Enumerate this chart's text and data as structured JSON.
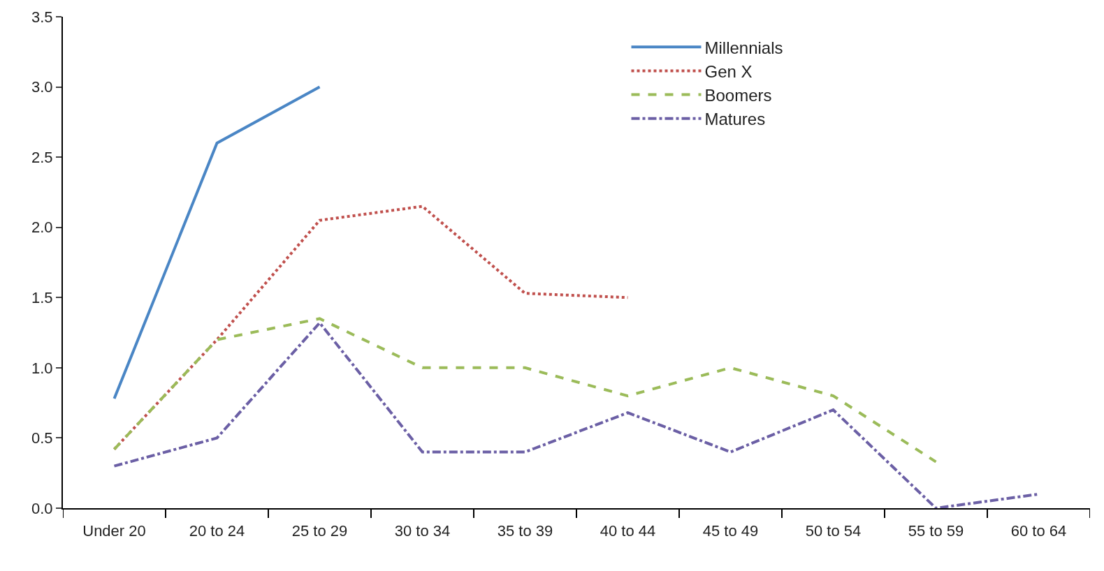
{
  "chart_data": {
    "type": "line",
    "categories": [
      "Under 20",
      "20 to 24",
      "25 to 29",
      "30 to 34",
      "35 to 39",
      "40 to 44",
      "45 to 49",
      "50 to 54",
      "55 to 59",
      "60 to 64"
    ],
    "series": [
      {
        "name": "Millennials",
        "color": "#4a86c5",
        "line_style": "solid",
        "values": [
          0.78,
          2.6,
          3.0,
          null,
          null,
          null,
          null,
          null,
          null,
          null
        ]
      },
      {
        "name": "Gen X",
        "color": "#c0504d",
        "line_style": "dotted",
        "values": [
          0.42,
          1.2,
          2.05,
          2.15,
          1.53,
          1.5,
          null,
          null,
          null,
          null
        ]
      },
      {
        "name": "Boomers",
        "color": "#9bbb59",
        "line_style": "dashed",
        "values": [
          0.42,
          1.2,
          1.35,
          1.0,
          1.0,
          0.8,
          1.0,
          0.8,
          0.33,
          null
        ]
      },
      {
        "name": "Matures",
        "color": "#6b5fa5",
        "line_style": "dashdot",
        "values": [
          0.3,
          0.5,
          1.32,
          0.4,
          0.4,
          0.68,
          0.4,
          0.7,
          0.0,
          0.1
        ]
      }
    ],
    "ylim": [
      0,
      3.5
    ],
    "yticks": [
      {
        "value": 0,
        "label": "0.0"
      },
      0.5,
      {
        "value": 1,
        "label": "1.0"
      },
      1.5,
      {
        "value": 2,
        "label": "2.0"
      },
      2.5,
      {
        "value": 3,
        "label": "3.0"
      },
      3.5
    ],
    "legend": "top right",
    "marker": "none"
  }
}
